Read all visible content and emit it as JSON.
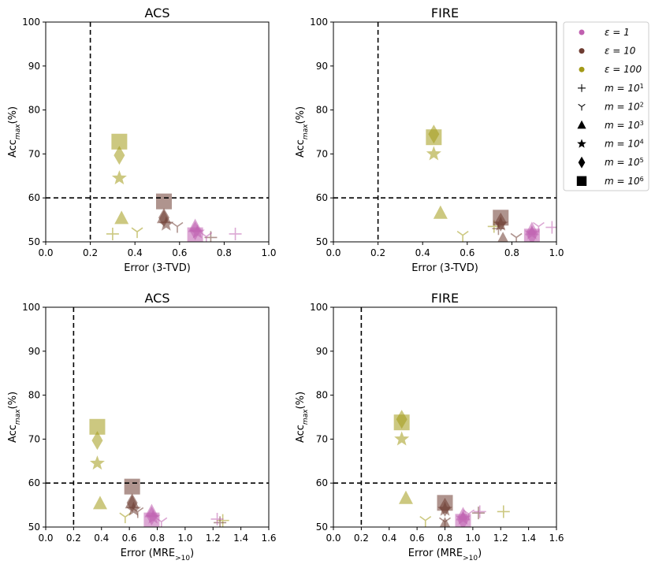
{
  "chart_data": [
    {
      "type": "scatter",
      "title": "ACS",
      "xlabel": "Error (3-TVD)",
      "ylabel": "Acc_max (%)",
      "xlim": [
        0,
        1.0
      ],
      "ylim": [
        50,
        100
      ],
      "xticks": [
        "0.0",
        "0.2",
        "0.4",
        "0.6",
        "0.8",
        "1.0"
      ],
      "yticks": [
        "50",
        "60",
        "70",
        "80",
        "90",
        "100"
      ],
      "ref_lines": {
        "x": 0.2,
        "y": 60
      },
      "points": [
        {
          "eps": "100",
          "m": "1",
          "x": 0.3,
          "y": 51.8
        },
        {
          "eps": "100",
          "m": "2",
          "x": 0.41,
          "y": 52.3
        },
        {
          "eps": "100",
          "m": "3",
          "x": 0.34,
          "y": 55.3
        },
        {
          "eps": "100",
          "m": "4",
          "x": 0.33,
          "y": 64.5
        },
        {
          "eps": "100",
          "m": "5",
          "x": 0.33,
          "y": 69.7
        },
        {
          "eps": "100",
          "m": "6",
          "x": 0.33,
          "y": 72.8
        },
        {
          "eps": "10",
          "m": "1",
          "x": 0.74,
          "y": 51.0
        },
        {
          "eps": "10",
          "m": "2",
          "x": 0.59,
          "y": 53.5
        },
        {
          "eps": "10",
          "m": "3",
          "x": 0.53,
          "y": 55.5
        },
        {
          "eps": "10",
          "m": "4",
          "x": 0.54,
          "y": 54.0
        },
        {
          "eps": "10",
          "m": "5",
          "x": 0.53,
          "y": 55.5
        },
        {
          "eps": "10",
          "m": "6",
          "x": 0.53,
          "y": 59.2
        },
        {
          "eps": "1",
          "m": "1",
          "x": 0.85,
          "y": 51.8
        },
        {
          "eps": "1",
          "m": "2",
          "x": 0.72,
          "y": 51.2
        },
        {
          "eps": "1",
          "m": "3",
          "x": 0.67,
          "y": 53.5
        },
        {
          "eps": "1",
          "m": "4",
          "x": 0.68,
          "y": 52.2
        },
        {
          "eps": "1",
          "m": "5",
          "x": 0.67,
          "y": 52.5
        },
        {
          "eps": "1",
          "m": "6",
          "x": 0.67,
          "y": 51.5
        }
      ]
    },
    {
      "type": "scatter",
      "title": "FIRE",
      "xlabel": "Error (3-TVD)",
      "ylabel": "Acc_max (%)",
      "xlim": [
        0,
        1.0
      ],
      "ylim": [
        50,
        100
      ],
      "xticks": [
        "0.0",
        "0.2",
        "0.4",
        "0.6",
        "0.8",
        "1.0"
      ],
      "yticks": [
        "50",
        "60",
        "70",
        "80",
        "90",
        "100"
      ],
      "ref_lines": {
        "x": 0.2,
        "y": 60
      },
      "points": [
        {
          "eps": "100",
          "m": "1",
          "x": 0.72,
          "y": 53.5
        },
        {
          "eps": "100",
          "m": "2",
          "x": 0.58,
          "y": 51.5
        },
        {
          "eps": "100",
          "m": "3",
          "x": 0.48,
          "y": 56.5
        },
        {
          "eps": "100",
          "m": "4",
          "x": 0.45,
          "y": 70.0
        },
        {
          "eps": "100",
          "m": "5",
          "x": 0.45,
          "y": 74.5
        },
        {
          "eps": "100",
          "m": "6",
          "x": 0.45,
          "y": 73.8
        },
        {
          "eps": "10",
          "m": "1",
          "x": 0.74,
          "y": 53.0
        },
        {
          "eps": "10",
          "m": "2",
          "x": 0.82,
          "y": 51.0
        },
        {
          "eps": "10",
          "m": "3",
          "x": 0.76,
          "y": 50.5
        },
        {
          "eps": "10",
          "m": "4",
          "x": 0.75,
          "y": 54.0
        },
        {
          "eps": "10",
          "m": "5",
          "x": 0.75,
          "y": 54.5
        },
        {
          "eps": "10",
          "m": "6",
          "x": 0.75,
          "y": 55.5
        },
        {
          "eps": "1",
          "m": "1",
          "x": 0.98,
          "y": 53.3
        },
        {
          "eps": "1",
          "m": "2",
          "x": 0.92,
          "y": 53.5
        },
        {
          "eps": "1",
          "m": "3",
          "x": 0.89,
          "y": 52.8
        },
        {
          "eps": "1",
          "m": "4",
          "x": 0.89,
          "y": 52.0
        },
        {
          "eps": "1",
          "m": "5",
          "x": 0.89,
          "y": 51.5
        },
        {
          "eps": "1",
          "m": "6",
          "x": 0.89,
          "y": 51.2
        }
      ]
    },
    {
      "type": "scatter",
      "title": "ACS",
      "xlabel": "Error (MRE>10)",
      "ylabel": "Acc_max (%)",
      "xlim": [
        0,
        1.6
      ],
      "ylim": [
        50,
        100
      ],
      "xticks": [
        "0.0",
        "0.2",
        "0.4",
        "0.6",
        "0.8",
        "1.0",
        "1.2",
        "1.4",
        "1.6"
      ],
      "yticks": [
        "50",
        "60",
        "70",
        "80",
        "90",
        "100"
      ],
      "ref_lines": {
        "x": 0.2,
        "y": 60
      },
      "points": [
        {
          "eps": "100",
          "m": "1",
          "x": 1.27,
          "y": 51.5
        },
        {
          "eps": "100",
          "m": "2",
          "x": 0.57,
          "y": 52.3
        },
        {
          "eps": "100",
          "m": "3",
          "x": 0.39,
          "y": 55.3
        },
        {
          "eps": "100",
          "m": "4",
          "x": 0.37,
          "y": 64.5
        },
        {
          "eps": "100",
          "m": "5",
          "x": 0.37,
          "y": 69.7
        },
        {
          "eps": "100",
          "m": "6",
          "x": 0.37,
          "y": 72.8
        },
        {
          "eps": "10",
          "m": "1",
          "x": 1.25,
          "y": 51.0
        },
        {
          "eps": "10",
          "m": "2",
          "x": 0.66,
          "y": 53.5
        },
        {
          "eps": "10",
          "m": "3",
          "x": 0.62,
          "y": 55.5
        },
        {
          "eps": "10",
          "m": "4",
          "x": 0.63,
          "y": 54.0
        },
        {
          "eps": "10",
          "m": "5",
          "x": 0.62,
          "y": 55.5
        },
        {
          "eps": "10",
          "m": "6",
          "x": 0.62,
          "y": 59.2
        },
        {
          "eps": "1",
          "m": "1",
          "x": 1.23,
          "y": 51.8
        },
        {
          "eps": "1",
          "m": "2",
          "x": 0.83,
          "y": 51.2
        },
        {
          "eps": "1",
          "m": "3",
          "x": 0.76,
          "y": 53.5
        },
        {
          "eps": "1",
          "m": "4",
          "x": 0.77,
          "y": 52.2
        },
        {
          "eps": "1",
          "m": "5",
          "x": 0.76,
          "y": 52.5
        },
        {
          "eps": "1",
          "m": "6",
          "x": 0.76,
          "y": 51.5
        }
      ]
    },
    {
      "type": "scatter",
      "title": "FIRE",
      "xlabel": "Error (MRE>10)",
      "ylabel": "Acc_max (%)",
      "xlim": [
        0,
        1.6
      ],
      "ylim": [
        50,
        100
      ],
      "xticks": [
        "0.0",
        "0.2",
        "0.4",
        "0.6",
        "0.8",
        "1.0",
        "1.2",
        "1.4",
        "1.6"
      ],
      "yticks": [
        "50",
        "60",
        "70",
        "80",
        "90",
        "100"
      ],
      "ref_lines": {
        "x": 0.2,
        "y": 60
      },
      "points": [
        {
          "eps": "100",
          "m": "1",
          "x": 1.22,
          "y": 53.5
        },
        {
          "eps": "100",
          "m": "2",
          "x": 0.66,
          "y": 51.5
        },
        {
          "eps": "100",
          "m": "3",
          "x": 0.52,
          "y": 56.5
        },
        {
          "eps": "100",
          "m": "4",
          "x": 0.49,
          "y": 70.0
        },
        {
          "eps": "100",
          "m": "5",
          "x": 0.49,
          "y": 74.5
        },
        {
          "eps": "100",
          "m": "6",
          "x": 0.49,
          "y": 73.8
        },
        {
          "eps": "10",
          "m": "1",
          "x": 1.04,
          "y": 53.2
        },
        {
          "eps": "10",
          "m": "2",
          "x": 0.8,
          "y": 51.2
        },
        {
          "eps": "10",
          "m": "3",
          "x": 0.8,
          "y": 50.5
        },
        {
          "eps": "10",
          "m": "4",
          "x": 0.8,
          "y": 54.0
        },
        {
          "eps": "10",
          "m": "5",
          "x": 0.8,
          "y": 54.5
        },
        {
          "eps": "10",
          "m": "6",
          "x": 0.8,
          "y": 55.5
        },
        {
          "eps": "1",
          "m": "1",
          "x": 1.05,
          "y": 53.5
        },
        {
          "eps": "1",
          "m": "2",
          "x": 0.97,
          "y": 53.0
        },
        {
          "eps": "1",
          "m": "3",
          "x": 0.93,
          "y": 52.8
        },
        {
          "eps": "1",
          "m": "4",
          "x": 0.93,
          "y": 52.0
        },
        {
          "eps": "1",
          "m": "5",
          "x": 0.93,
          "y": 51.5
        },
        {
          "eps": "1",
          "m": "6",
          "x": 0.93,
          "y": 51.2
        }
      ]
    }
  ],
  "legend": {
    "placement": "right",
    "colors": [
      {
        "eps": "1",
        "label": "ε = 1",
        "color": "#c060b0"
      },
      {
        "eps": "10",
        "label": "ε = 10",
        "color": "#6e3c32"
      },
      {
        "eps": "100",
        "label": "ε = 100",
        "color": "#a39a18"
      }
    ],
    "markers": [
      {
        "m": "1",
        "label": "m = 10",
        "sup": "1",
        "shape": "plus"
      },
      {
        "m": "2",
        "label": "m = 10",
        "sup": "2",
        "shape": "tri-down"
      },
      {
        "m": "3",
        "label": "m = 10",
        "sup": "3",
        "shape": "triangle"
      },
      {
        "m": "4",
        "label": "m = 10",
        "sup": "4",
        "shape": "star"
      },
      {
        "m": "5",
        "label": "m = 10",
        "sup": "5",
        "shape": "diamond"
      },
      {
        "m": "6",
        "label": "m = 10",
        "sup": "6",
        "shape": "square"
      }
    ]
  },
  "styles": {
    "eps_colors": {
      "1": "#c060b0",
      "10": "#6e3c32",
      "100": "#a39a18"
    },
    "marker_alpha": "0.55",
    "ylabel_main": "Acc",
    "ylabel_sub": "max",
    "ylabel_suffix": "(%)",
    "mre_prefix": "Error (MRE",
    "mre_sub": ">10",
    "mre_suffix": ")"
  }
}
